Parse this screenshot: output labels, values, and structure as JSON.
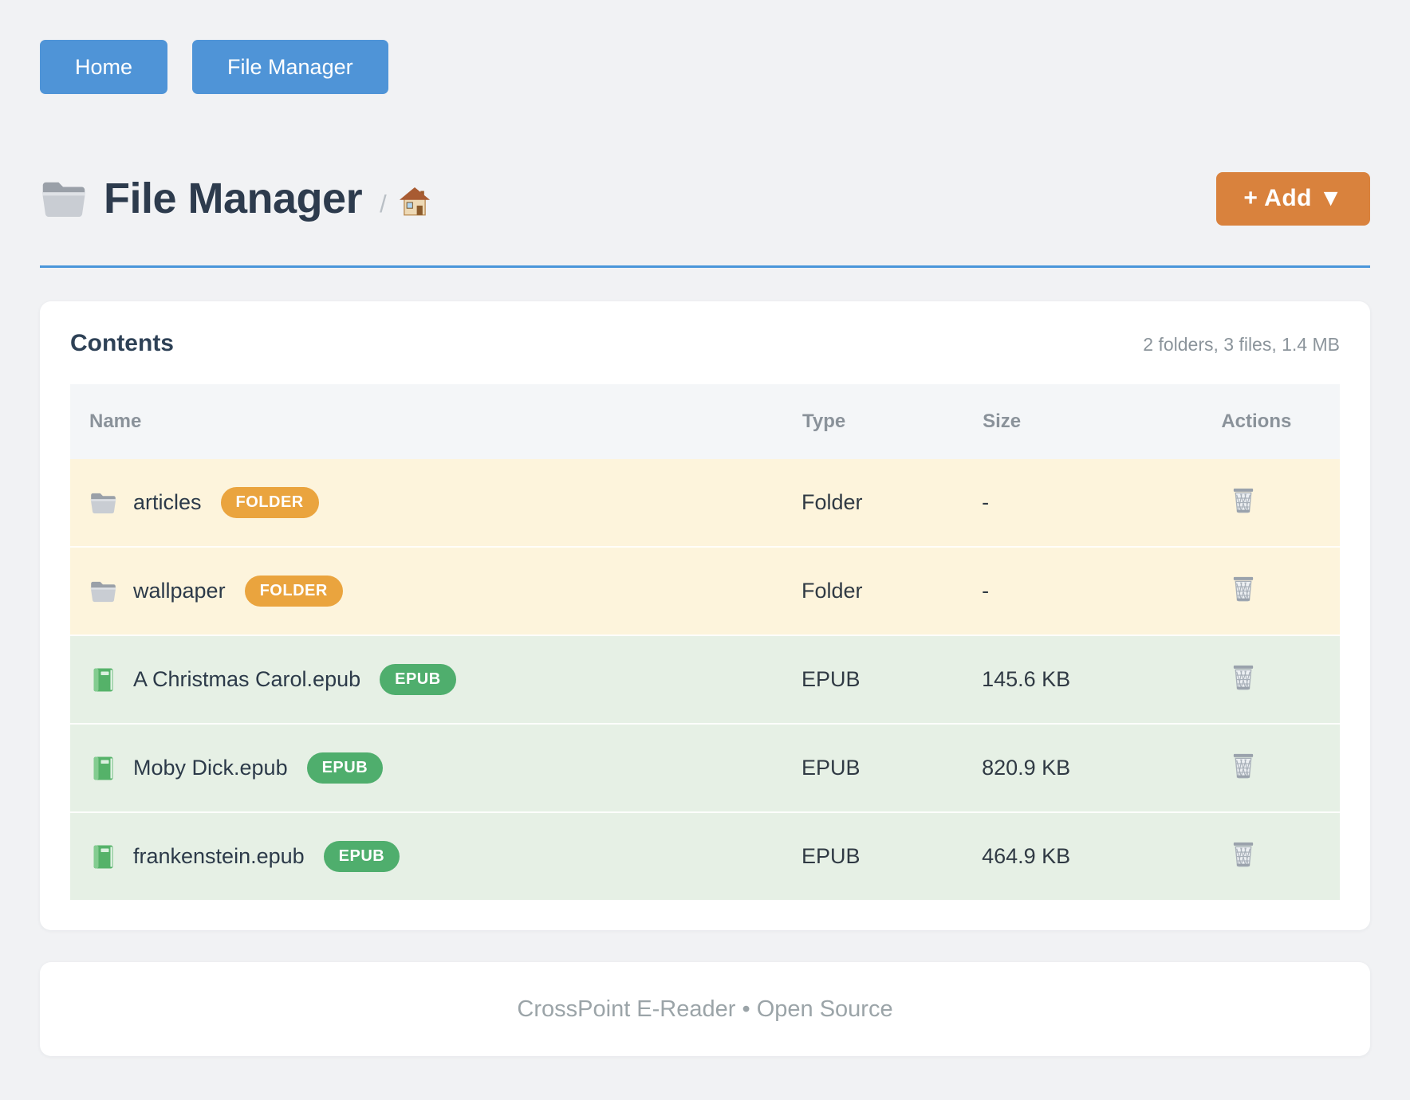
{
  "nav": {
    "home_label": "Home",
    "file_manager_label": "File Manager"
  },
  "header": {
    "title": "File Manager",
    "breadcrumb_separator": "/",
    "add_button_label": "+ Add ▼"
  },
  "contents": {
    "title": "Contents",
    "summary": "2 folders, 3 files, 1.4 MB",
    "columns": [
      "Name",
      "Type",
      "Size",
      "Actions"
    ],
    "rows": [
      {
        "name": "articles",
        "badge": "FOLDER",
        "type": "Folder",
        "size": "-",
        "kind": "folder"
      },
      {
        "name": "wallpaper",
        "badge": "FOLDER",
        "type": "Folder",
        "size": "-",
        "kind": "folder"
      },
      {
        "name": "A Christmas Carol.epub",
        "badge": "EPUB",
        "type": "EPUB",
        "size": "145.6 KB",
        "kind": "epub"
      },
      {
        "name": "Moby Dick.epub",
        "badge": "EPUB",
        "type": "EPUB",
        "size": "820.9 KB",
        "kind": "epub"
      },
      {
        "name": "frankenstein.epub",
        "badge": "EPUB",
        "type": "EPUB",
        "size": "464.9 KB",
        "kind": "epub"
      }
    ]
  },
  "footer": {
    "text": "CrossPoint E-Reader • Open Source"
  },
  "icons": {
    "title_icon": "folder-icon",
    "breadcrumb_icon": "home-icon",
    "folder_row_icon": "folder-icon",
    "epub_row_icon": "green-book-icon",
    "action_icon": "trash-icon"
  },
  "colors": {
    "page_bg": "#f1f2f4",
    "nav_button": "#4f94d7",
    "divider_blue": "#4a96da",
    "add_button": "#d9823d",
    "title_text": "#2d3b4d",
    "muted_text": "#8b949b",
    "badge_folder": "#eaa43e",
    "badge_epub": "#4fae6d",
    "row_folder_bg": "#fdf4dc",
    "row_epub_bg": "#e6f0e5"
  }
}
